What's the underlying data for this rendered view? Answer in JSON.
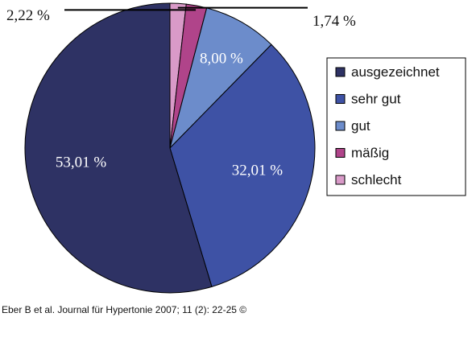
{
  "chart_data": {
    "type": "pie",
    "categories": [
      "ausgezeichnet",
      "sehr gut",
      "gut",
      "mäßig",
      "schlecht"
    ],
    "values": [
      53.01,
      32.01,
      8.0,
      2.22,
      1.74
    ],
    "value_labels": [
      "53,01 %",
      "32,01 %",
      "8,00 %",
      "2,22 %",
      "1,74 %"
    ],
    "colors": [
      "#2e3264",
      "#3e52a5",
      "#6c8ccb",
      "#b0448a",
      "#d99ac8"
    ],
    "label_color": "#ffffff",
    "start_angle": "12 o'clock",
    "direction": "clockwise",
    "legend": {
      "entries": [
        "ausgezeichnet",
        "sehr gut",
        "gut",
        "mäßig",
        "schlecht"
      ],
      "placement": "right"
    }
  },
  "caption": {
    "text": "Eber B et al. Journal für Hypertonie 2007; 11 (2): 22-25 ©"
  }
}
